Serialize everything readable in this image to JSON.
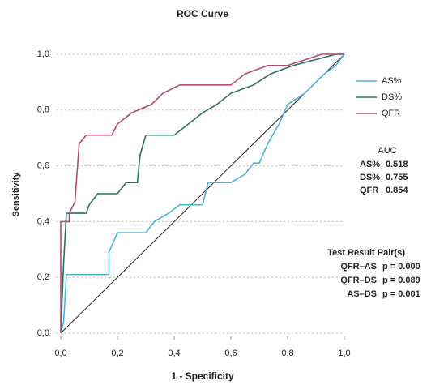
{
  "chart_data": {
    "type": "line",
    "title": "ROC Curve",
    "x_label": "1 - Specificity",
    "y_label": "Sensitivity",
    "xlim": [
      0,
      1
    ],
    "ylim": [
      0,
      1
    ],
    "xticks": [
      {
        "value": 0,
        "label": "0,0"
      },
      {
        "value": 0.2,
        "label": "0,2"
      },
      {
        "value": 0.4,
        "label": "0,4"
      },
      {
        "value": 0.6,
        "label": "0,6"
      },
      {
        "value": 0.8,
        "label": "0,8"
      },
      {
        "value": 1,
        "label": "1,0"
      }
    ],
    "yticks": [
      {
        "value": 0,
        "label": "0,0"
      },
      {
        "value": 0.2,
        "label": "0,2"
      },
      {
        "value": 0.4,
        "label": "0,4"
      },
      {
        "value": 0.6,
        "label": "0,6"
      },
      {
        "value": 0.8,
        "label": "0,8"
      },
      {
        "value": 1,
        "label": "1,0"
      }
    ],
    "grid": true,
    "series": [
      {
        "name": "AS%",
        "color": "#4db3d6",
        "x": [
          0,
          0.01,
          0.02,
          0.17,
          0.17,
          0.2,
          0.3,
          0.33,
          0.38,
          0.42,
          0.5,
          0.52,
          0.6,
          0.65,
          0.68,
          0.7,
          0.73,
          0.77,
          0.8,
          0.86,
          0.93,
          0.97,
          1
        ],
        "values": [
          0,
          0.04,
          0.21,
          0.21,
          0.29,
          0.36,
          0.36,
          0.4,
          0.43,
          0.46,
          0.46,
          0.54,
          0.54,
          0.57,
          0.61,
          0.61,
          0.68,
          0.75,
          0.82,
          0.86,
          0.93,
          0.96,
          1
        ]
      },
      {
        "name": "DS%",
        "color": "#2f6e62",
        "x": [
          0,
          0.01,
          0.02,
          0.09,
          0.1,
          0.13,
          0.2,
          0.23,
          0.27,
          0.28,
          0.3,
          0.4,
          0.45,
          0.5,
          0.55,
          0.6,
          0.68,
          0.74,
          0.82,
          0.97,
          1
        ],
        "values": [
          0,
          0.25,
          0.43,
          0.43,
          0.46,
          0.5,
          0.5,
          0.54,
          0.54,
          0.64,
          0.71,
          0.71,
          0.75,
          0.79,
          0.82,
          0.86,
          0.89,
          0.93,
          0.96,
          1,
          1
        ]
      },
      {
        "name": "QFR",
        "color": "#b04a78",
        "x": [
          0,
          0,
          0.03,
          0.03,
          0.05,
          0.065,
          0.09,
          0.18,
          0.2,
          0.25,
          0.32,
          0.36,
          0.42,
          0.6,
          0.65,
          0.73,
          0.8,
          0.92,
          1
        ],
        "values": [
          0,
          0.4,
          0.4,
          0.43,
          0.47,
          0.68,
          0.71,
          0.71,
          0.75,
          0.79,
          0.82,
          0.86,
          0.89,
          0.89,
          0.93,
          0.96,
          0.96,
          1,
          1
        ]
      }
    ],
    "auc": {
      "label": "AUC",
      "values": [
        0.518,
        0.755,
        0.854
      ],
      "colors": [
        "#2aa9d8",
        "#1f9a5a",
        "#7b3fb0"
      ]
    },
    "pairs": {
      "title": "Test Result Pair(s)",
      "rows": [
        [
          "QFR–AS",
          "p = 0.000"
        ],
        [
          "QFR–DS",
          "p = 0.089"
        ],
        [
          "AS–DS",
          "p = 0.001"
        ]
      ]
    }
  }
}
